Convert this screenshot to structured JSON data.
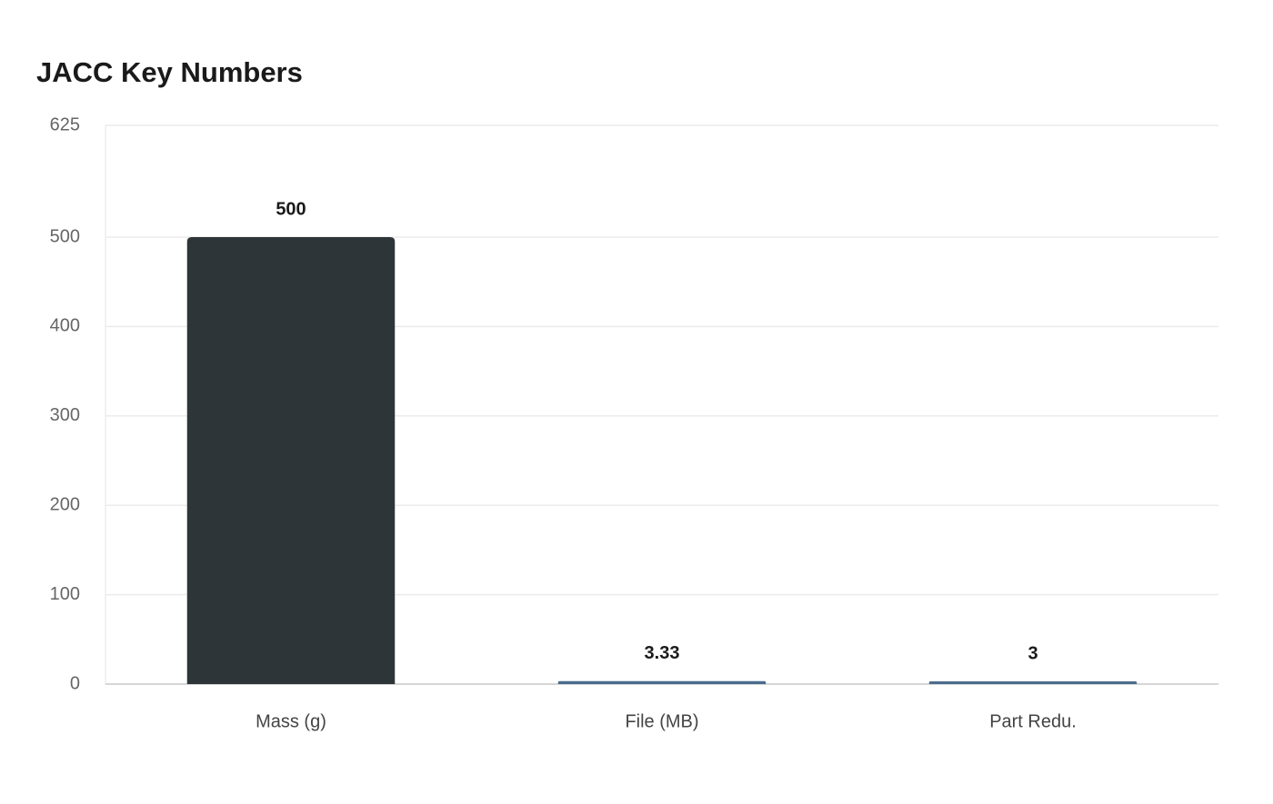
{
  "chart_data": {
    "type": "bar",
    "title": "JACC Key Numbers",
    "categories": [
      "Mass (g)",
      "File (MB)",
      "Part Redu."
    ],
    "values": [
      500,
      3.33,
      3
    ],
    "colors": [
      "#2e3538",
      "#4a6d8c",
      "#4a6d8c"
    ],
    "ylim": [
      0,
      625
    ],
    "yticks": [
      0,
      100,
      200,
      300,
      400,
      500,
      625
    ],
    "grid": true
  }
}
